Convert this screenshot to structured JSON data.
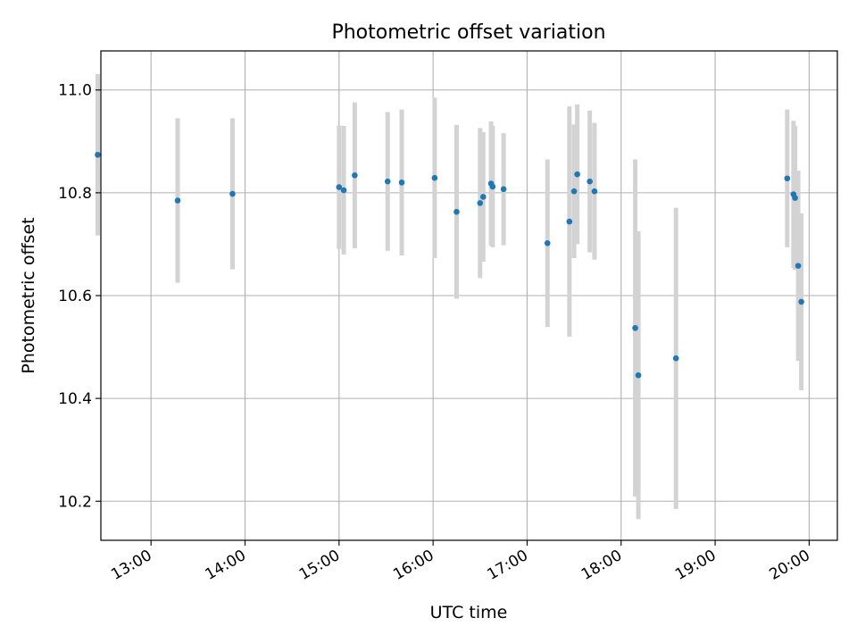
{
  "chart_data": {
    "type": "scatter",
    "title": "Photometric offset variation",
    "xlabel": "UTC time",
    "ylabel": "Photometric offset",
    "x_type": "time",
    "xlim": [
      "12:28",
      "20:18"
    ],
    "ylim": [
      10.124,
      11.076
    ],
    "x_ticks": [
      "13:00",
      "14:00",
      "15:00",
      "16:00",
      "17:00",
      "18:00",
      "19:00",
      "20:00"
    ],
    "y_ticks": [
      10.2,
      10.4,
      10.6,
      10.8,
      11.0
    ],
    "y_tick_labels": [
      "10.2",
      "10.4",
      "10.6",
      "10.8",
      "11.0"
    ],
    "grid": true,
    "series": [
      {
        "marker_color": "#1f77b4",
        "errorbar_color": "#d3d3d3",
        "points": [
          {
            "t": "12:26",
            "y": 10.874,
            "err": 0.157
          },
          {
            "t": "13:17",
            "y": 10.785,
            "err": 0.16
          },
          {
            "t": "13:52",
            "y": 10.798,
            "err": 0.147
          },
          {
            "t": "15:00",
            "y": 10.811,
            "err": 0.12
          },
          {
            "t": "15:03",
            "y": 10.805,
            "err": 0.125
          },
          {
            "t": "15:10",
            "y": 10.834,
            "err": 0.142
          },
          {
            "t": "15:31",
            "y": 10.822,
            "err": 0.135
          },
          {
            "t": "15:40",
            "y": 10.82,
            "err": 0.142
          },
          {
            "t": "16:01",
            "y": 10.829,
            "err": 0.156
          },
          {
            "t": "16:15",
            "y": 10.763,
            "err": 0.169
          },
          {
            "t": "16:30",
            "y": 10.78,
            "err": 0.146
          },
          {
            "t": "16:32",
            "y": 10.792,
            "err": 0.126
          },
          {
            "t": "16:37",
            "y": 10.818,
            "err": 0.121
          },
          {
            "t": "16:38",
            "y": 10.812,
            "err": 0.118
          },
          {
            "t": "16:45",
            "y": 10.807,
            "err": 0.109
          },
          {
            "t": "17:13",
            "y": 10.702,
            "err": 0.163
          },
          {
            "t": "17:27",
            "y": 10.744,
            "err": 0.224
          },
          {
            "t": "17:30",
            "y": 10.803,
            "err": 0.13
          },
          {
            "t": "17:32",
            "y": 10.836,
            "err": 0.136
          },
          {
            "t": "17:40",
            "y": 10.822,
            "err": 0.138
          },
          {
            "t": "17:43",
            "y": 10.803,
            "err": 0.133
          },
          {
            "t": "18:09",
            "y": 10.537,
            "err": 0.328
          },
          {
            "t": "18:11",
            "y": 10.445,
            "err": 0.28
          },
          {
            "t": "18:35",
            "y": 10.478,
            "err": 0.293
          },
          {
            "t": "19:46",
            "y": 10.828,
            "err": 0.134
          },
          {
            "t": "19:50",
            "y": 10.797,
            "err": 0.143
          },
          {
            "t": "19:51",
            "y": 10.79,
            "err": 0.14
          },
          {
            "t": "19:53",
            "y": 10.658,
            "err": 0.185
          },
          {
            "t": "19:55",
            "y": 10.588,
            "err": 0.172
          }
        ]
      }
    ]
  }
}
